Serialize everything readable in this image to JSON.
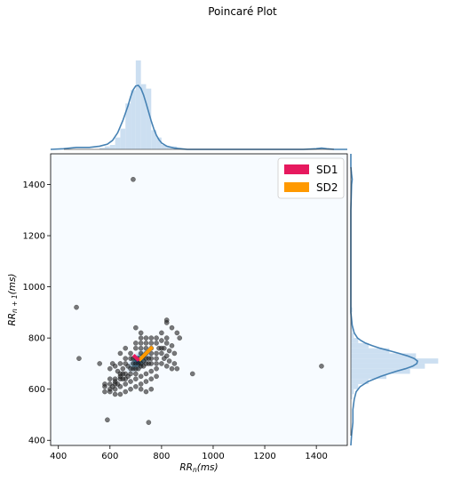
{
  "figure_title": "Poincaré Plot",
  "chart_data": {
    "type": "scatter",
    "title": "Poincaré Plot",
    "xlabel": "RR_n(ms)",
    "ylabel": "RR_{n+1}(ms)",
    "xlim": [
      370,
      1520
    ],
    "ylim": [
      380,
      1520
    ],
    "x_ticks": [
      400,
      600,
      800,
      1000,
      1200,
      1400
    ],
    "y_ticks": [
      400,
      600,
      800,
      1000,
      1200,
      1400
    ],
    "x_tick_labels": [
      "400",
      "600",
      "800",
      "1000",
      "1200",
      "1400"
    ],
    "y_tick_labels": [
      "400",
      "600",
      "800",
      "1000",
      "1200",
      "1400"
    ],
    "grid": false,
    "legend": {
      "placement": "top-right",
      "entries": [
        {
          "label": "SD1",
          "color": "#e6195e"
        },
        {
          "label": "SD2",
          "color": "#ff9900"
        }
      ]
    },
    "colors": {
      "points": "#222222",
      "kde_line": "#4682b4",
      "hist_fill": "#c6dbef",
      "density_background": "#f7fbff",
      "sd1": "#e6195e",
      "sd2": "#ff9900"
    },
    "center": [
      712,
      712
    ],
    "sd1_value": 30,
    "sd2_value": 75,
    "points": [
      [
        690,
        1420
      ],
      [
        470,
        920
      ],
      [
        480,
        720
      ],
      [
        1420,
        690
      ],
      [
        920,
        660
      ],
      [
        590,
        480
      ],
      [
        750,
        470
      ],
      [
        820,
        870
      ],
      [
        820,
        860
      ],
      [
        840,
        840
      ],
      [
        860,
        820
      ],
      [
        870,
        800
      ],
      [
        700,
        840
      ],
      [
        720,
        820
      ],
      [
        740,
        800
      ],
      [
        760,
        800
      ],
      [
        780,
        780
      ],
      [
        800,
        790
      ],
      [
        820,
        780
      ],
      [
        840,
        770
      ],
      [
        790,
        760
      ],
      [
        810,
        760
      ],
      [
        830,
        750
      ],
      [
        850,
        740
      ],
      [
        810,
        720
      ],
      [
        830,
        710
      ],
      [
        850,
        700
      ],
      [
        860,
        680
      ],
      [
        840,
        680
      ],
      [
        820,
        690
      ],
      [
        800,
        700
      ],
      [
        780,
        720
      ],
      [
        760,
        740
      ],
      [
        740,
        760
      ],
      [
        720,
        780
      ],
      [
        700,
        760
      ],
      [
        680,
        740
      ],
      [
        660,
        720
      ],
      [
        640,
        700
      ],
      [
        620,
        690
      ],
      [
        600,
        680
      ],
      [
        560,
        700
      ],
      [
        580,
        610
      ],
      [
        600,
        600
      ],
      [
        620,
        600
      ],
      [
        640,
        610
      ],
      [
        660,
        620
      ],
      [
        680,
        630
      ],
      [
        700,
        640
      ],
      [
        580,
        620
      ],
      [
        600,
        620
      ],
      [
        620,
        630
      ],
      [
        640,
        640
      ],
      [
        580,
        590
      ],
      [
        600,
        590
      ],
      [
        620,
        580
      ],
      [
        640,
        580
      ],
      [
        660,
        590
      ],
      [
        680,
        600
      ],
      [
        700,
        610
      ],
      [
        720,
        620
      ],
      [
        740,
        630
      ],
      [
        760,
        640
      ],
      [
        780,
        650
      ],
      [
        700,
        660
      ],
      [
        720,
        650
      ],
      [
        740,
        660
      ],
      [
        760,
        670
      ],
      [
        780,
        680
      ],
      [
        760,
        600
      ],
      [
        740,
        590
      ],
      [
        720,
        600
      ],
      [
        710,
        720
      ],
      [
        730,
        730
      ],
      [
        690,
        700
      ],
      [
        670,
        690
      ],
      [
        650,
        680
      ],
      [
        630,
        670
      ],
      [
        670,
        650
      ],
      [
        650,
        660
      ],
      [
        800,
        740
      ],
      [
        820,
        730
      ],
      [
        780,
        700
      ],
      [
        760,
        720
      ],
      [
        700,
        780
      ],
      [
        720,
        760
      ],
      [
        660,
        760
      ],
      [
        640,
        740
      ],
      [
        610,
        700
      ],
      [
        720,
        690
      ],
      [
        740,
        700
      ],
      [
        690,
        680
      ],
      [
        710,
        700
      ],
      [
        730,
        710
      ],
      [
        750,
        720
      ],
      [
        680,
        660
      ],
      [
        660,
        640
      ],
      [
        700,
        720
      ],
      [
        720,
        740
      ],
      [
        740,
        740
      ],
      [
        760,
        760
      ],
      [
        680,
        720
      ],
      [
        660,
        700
      ],
      [
        640,
        660
      ],
      [
        620,
        640
      ],
      [
        600,
        640
      ],
      [
        620,
        620
      ],
      [
        700,
        700
      ],
      [
        710,
        680
      ],
      [
        690,
        720
      ],
      [
        730,
        690
      ],
      [
        750,
        700
      ],
      [
        650,
        640
      ],
      [
        630,
        620
      ],
      [
        610,
        610
      ],
      [
        680,
        680
      ],
      [
        700,
        680
      ],
      [
        720,
        700
      ],
      [
        740,
        720
      ],
      [
        660,
        660
      ],
      [
        640,
        650
      ],
      [
        760,
        700
      ],
      [
        780,
        740
      ],
      [
        800,
        760
      ],
      [
        820,
        800
      ],
      [
        800,
        820
      ],
      [
        780,
        800
      ],
      [
        760,
        780
      ],
      [
        740,
        780
      ],
      [
        720,
        800
      ]
    ],
    "marginal_x": {
      "kde_x": [
        370,
        420,
        470,
        520,
        560,
        590,
        610,
        630,
        650,
        670,
        680,
        690,
        700,
        710,
        720,
        730,
        740,
        750,
        760,
        770,
        780,
        790,
        800,
        820,
        850,
        900,
        950,
        1000,
        1100,
        1200,
        1300,
        1350,
        1400,
        1420,
        1440,
        1470,
        1520
      ],
      "kde_y": [
        0.0,
        0.01,
        0.03,
        0.03,
        0.05,
        0.08,
        0.14,
        0.26,
        0.45,
        0.68,
        0.82,
        0.93,
        0.99,
        1.0,
        0.95,
        0.85,
        0.72,
        0.58,
        0.44,
        0.32,
        0.22,
        0.15,
        0.1,
        0.05,
        0.02,
        0.0,
        0.0,
        0.0,
        0.0,
        0.0,
        0.0,
        0.0,
        0.01,
        0.02,
        0.01,
        0.0,
        0.0
      ],
      "hist_bins": [
        [
          560,
          580,
          0.02
        ],
        [
          580,
          600,
          0.04
        ],
        [
          600,
          620,
          0.06
        ],
        [
          620,
          640,
          0.16
        ],
        [
          640,
          660,
          0.28
        ],
        [
          660,
          680,
          0.62
        ],
        [
          680,
          700,
          0.8
        ],
        [
          700,
          720,
          1.2
        ],
        [
          720,
          740,
          0.88
        ],
        [
          740,
          760,
          0.82
        ],
        [
          760,
          780,
          0.26
        ],
        [
          780,
          800,
          0.16
        ],
        [
          800,
          820,
          0.06
        ],
        [
          820,
          840,
          0.04
        ],
        [
          840,
          860,
          0.04
        ],
        [
          1400,
          1420,
          0.02
        ]
      ]
    },
    "marginal_y": {
      "kde_y_values": [
        380,
        420,
        470,
        520,
        560,
        590,
        610,
        630,
        650,
        670,
        680,
        690,
        700,
        710,
        720,
        730,
        740,
        750,
        760,
        770,
        780,
        790,
        800,
        820,
        850,
        900,
        950,
        1000,
        1100,
        1200,
        1300,
        1400,
        1420,
        1440,
        1470,
        1520
      ],
      "kde_density": [
        0.0,
        0.01,
        0.03,
        0.03,
        0.05,
        0.08,
        0.14,
        0.26,
        0.45,
        0.68,
        0.82,
        0.93,
        0.99,
        1.0,
        0.95,
        0.85,
        0.72,
        0.58,
        0.44,
        0.32,
        0.22,
        0.15,
        0.1,
        0.05,
        0.02,
        0.0,
        0.0,
        0.0,
        0.0,
        0.0,
        0.0,
        0.01,
        0.02,
        0.01,
        0.0,
        0.0
      ],
      "hist_bins": [
        [
          560,
          580,
          0.02
        ],
        [
          580,
          600,
          0.04
        ],
        [
          600,
          620,
          0.1
        ],
        [
          620,
          640,
          0.24
        ],
        [
          640,
          660,
          0.48
        ],
        [
          660,
          680,
          0.8
        ],
        [
          680,
          700,
          1.0
        ],
        [
          700,
          720,
          1.18
        ],
        [
          720,
          740,
          0.88
        ],
        [
          740,
          760,
          0.52
        ],
        [
          760,
          780,
          0.24
        ],
        [
          780,
          800,
          0.1
        ],
        [
          800,
          820,
          0.04
        ],
        [
          820,
          840,
          0.02
        ],
        [
          840,
          860,
          0.02
        ],
        [
          900,
          920,
          0.02
        ]
      ]
    }
  }
}
